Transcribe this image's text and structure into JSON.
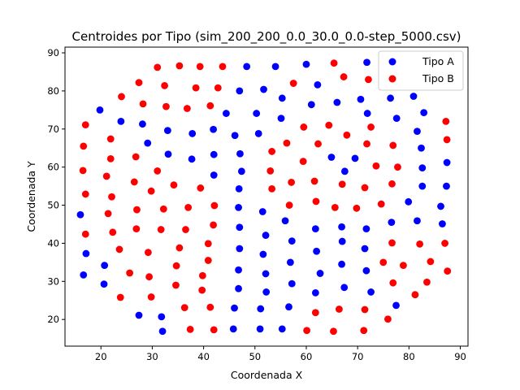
{
  "chart_data": {
    "type": "scatter",
    "title": "Centroides por Tipo (sim_200_200_0.0_30.0_0.0-step_5000.csv)",
    "xlabel": "Coordenada X",
    "ylabel": "Coordenada Y",
    "xlim": [
      13,
      91.5
    ],
    "ylim": [
      13,
      91.5
    ],
    "xticks": [
      20,
      30,
      40,
      50,
      60,
      70,
      80,
      90
    ],
    "yticks": [
      20,
      30,
      40,
      50,
      60,
      70,
      80,
      90
    ],
    "grid": false,
    "legend": "top-right",
    "series": [
      {
        "name": "Tipo A",
        "color": "#0000ff",
        "points": [
          [
            71.8,
            87.5
          ],
          [
            48.4,
            86.4
          ],
          [
            54.0,
            86.4
          ],
          [
            60.0,
            87.0
          ],
          [
            47.0,
            80.0
          ],
          [
            51.7,
            80.4
          ],
          [
            62.2,
            81.6
          ],
          [
            19.8,
            75.0
          ],
          [
            55.3,
            78.1
          ],
          [
            61.0,
            76.4
          ],
          [
            66.0,
            77.0
          ],
          [
            70.6,
            77.8
          ],
          [
            76.4,
            78.1
          ],
          [
            80.9,
            78.6
          ],
          [
            23.9,
            72.0
          ],
          [
            28.1,
            71.3
          ],
          [
            44.4,
            74.1
          ],
          [
            50.3,
            74.1
          ],
          [
            55.1,
            72.8
          ],
          [
            71.9,
            74.1
          ],
          [
            77.6,
            72.8
          ],
          [
            82.9,
            74.3
          ],
          [
            33.0,
            69.6
          ],
          [
            37.8,
            68.8
          ],
          [
            41.9,
            69.9
          ],
          [
            46.1,
            68.3
          ],
          [
            50.7,
            68.8
          ],
          [
            81.6,
            69.4
          ],
          [
            29.1,
            66.3
          ],
          [
            82.4,
            65.0
          ],
          [
            33.1,
            63.4
          ],
          [
            37.7,
            62.1
          ],
          [
            42.0,
            63.3
          ],
          [
            47.1,
            63.5
          ],
          [
            64.9,
            62.6
          ],
          [
            69.5,
            62.3
          ],
          [
            42.0,
            57.9
          ],
          [
            47.4,
            58.9
          ],
          [
            67.5,
            58.9
          ],
          [
            82.6,
            59.8
          ],
          [
            87.4,
            61.2
          ],
          [
            46.9,
            54.3
          ],
          [
            82.6,
            55.0
          ],
          [
            87.3,
            55.0
          ],
          [
            46.8,
            49.4
          ],
          [
            51.5,
            48.3
          ],
          [
            79.9,
            50.9
          ],
          [
            86.2,
            49.7
          ],
          [
            16.0,
            47.5
          ],
          [
            55.9,
            45.9
          ],
          [
            66.9,
            44.3
          ],
          [
            71.7,
            43.8
          ],
          [
            76.6,
            45.5
          ],
          [
            81.6,
            45.9
          ],
          [
            86.5,
            45.1
          ],
          [
            47.0,
            44.2
          ],
          [
            52.1,
            42.1
          ],
          [
            57.2,
            40.6
          ],
          [
            61.8,
            43.8
          ],
          [
            67.0,
            40.5
          ],
          [
            47.0,
            38.6
          ],
          [
            51.6,
            37.1
          ],
          [
            17.1,
            37.3
          ],
          [
            62.0,
            37.9
          ],
          [
            71.4,
            38.6
          ],
          [
            20.7,
            34.2
          ],
          [
            46.8,
            33.0
          ],
          [
            56.9,
            35.0
          ],
          [
            66.9,
            34.5
          ],
          [
            71.7,
            32.8
          ],
          [
            52.1,
            32.0
          ],
          [
            57.2,
            29.4
          ],
          [
            62.7,
            32.1
          ],
          [
            16.6,
            31.7
          ],
          [
            20.6,
            29.3
          ],
          [
            46.8,
            28.1
          ],
          [
            52.2,
            27.2
          ],
          [
            61.8,
            27.0
          ],
          [
            67.4,
            28.4
          ],
          [
            72.6,
            27.2
          ],
          [
            27.4,
            21.1
          ],
          [
            31.8,
            20.7
          ],
          [
            46.0,
            23.0
          ],
          [
            51.1,
            22.8
          ],
          [
            56.6,
            23.3
          ],
          [
            77.5,
            23.7
          ],
          [
            32.0,
            16.9
          ],
          [
            45.8,
            17.5
          ],
          [
            51.0,
            17.5
          ],
          [
            55.3,
            17.5
          ]
        ]
      },
      {
        "name": "Tipo B",
        "color": "#ff0000",
        "points": [
          [
            31.0,
            86.2
          ],
          [
            35.3,
            86.6
          ],
          [
            39.3,
            86.4
          ],
          [
            43.7,
            86.4
          ],
          [
            65.4,
            87.3
          ],
          [
            67.3,
            83.7
          ],
          [
            72.1,
            83.0
          ],
          [
            76.7,
            83.2
          ],
          [
            27.4,
            82.2
          ],
          [
            32.4,
            81.4
          ],
          [
            38.5,
            80.8
          ],
          [
            42.8,
            80.8
          ],
          [
            57.5,
            82.0
          ],
          [
            24.0,
            78.5
          ],
          [
            28.2,
            76.6
          ],
          [
            32.7,
            75.9
          ],
          [
            36.8,
            75.4
          ],
          [
            41.3,
            76.1
          ],
          [
            17.0,
            71.1
          ],
          [
            59.5,
            70.5
          ],
          [
            64.4,
            71.0
          ],
          [
            72.6,
            70.5
          ],
          [
            87.2,
            72.0
          ],
          [
            21.9,
            67.4
          ],
          [
            56.2,
            66.3
          ],
          [
            62.3,
            66.1
          ],
          [
            67.9,
            68.4
          ],
          [
            71.8,
            66.1
          ],
          [
            76.9,
            65.7
          ],
          [
            87.4,
            67.2
          ],
          [
            16.6,
            65.5
          ],
          [
            21.9,
            62.2
          ],
          [
            26.8,
            62.7
          ],
          [
            53.3,
            64.1
          ],
          [
            59.4,
            61.5
          ],
          [
            73.6,
            60.3
          ],
          [
            77.8,
            60.0
          ],
          [
            16.5,
            59.1
          ],
          [
            21.1,
            57.6
          ],
          [
            26.5,
            56.1
          ],
          [
            31.0,
            59.0
          ],
          [
            53.0,
            59.0
          ],
          [
            57.1,
            56.0
          ],
          [
            61.6,
            56.3
          ],
          [
            67.0,
            55.5
          ],
          [
            76.7,
            55.6
          ],
          [
            29.8,
            53.7
          ],
          [
            34.2,
            55.3
          ],
          [
            39.4,
            54.5
          ],
          [
            53.3,
            54.3
          ],
          [
            71.4,
            54.6
          ],
          [
            17.0,
            52.9
          ],
          [
            22.1,
            52.2
          ],
          [
            27.0,
            48.8
          ],
          [
            32.2,
            49.0
          ],
          [
            37.0,
            49.4
          ],
          [
            42.1,
            49.9
          ],
          [
            56.7,
            50.0
          ],
          [
            61.9,
            51.0
          ],
          [
            65.6,
            49.4
          ],
          [
            69.8,
            49.2
          ],
          [
            74.6,
            50.3
          ],
          [
            21.4,
            47.8
          ],
          [
            26.9,
            43.8
          ],
          [
            31.7,
            43.6
          ],
          [
            36.5,
            43.6
          ],
          [
            41.9,
            44.8
          ],
          [
            17.0,
            42.4
          ],
          [
            22.3,
            42.9
          ],
          [
            23.6,
            38.4
          ],
          [
            29.2,
            37.6
          ],
          [
            35.3,
            38.8
          ],
          [
            40.9,
            39.9
          ],
          [
            76.7,
            40.1
          ],
          [
            82.1,
            39.8
          ],
          [
            87.0,
            40.0
          ],
          [
            34.7,
            34.1
          ],
          [
            40.9,
            35.5
          ],
          [
            75.0,
            35.0
          ],
          [
            78.9,
            34.2
          ],
          [
            84.2,
            35.2
          ],
          [
            25.6,
            32.2
          ],
          [
            29.4,
            31.2
          ],
          [
            39.8,
            31.5
          ],
          [
            87.5,
            32.7
          ],
          [
            34.6,
            29.0
          ],
          [
            39.7,
            27.7
          ],
          [
            76.9,
            29.6
          ],
          [
            83.5,
            29.8
          ],
          [
            23.8,
            25.8
          ],
          [
            29.8,
            25.9
          ],
          [
            81.2,
            26.5
          ],
          [
            36.3,
            23.1
          ],
          [
            41.3,
            23.2
          ],
          [
            61.8,
            21.8
          ],
          [
            66.4,
            22.7
          ],
          [
            71.4,
            22.6
          ],
          [
            75.9,
            20.1
          ],
          [
            37.4,
            17.4
          ],
          [
            42.0,
            17.3
          ],
          [
            60.1,
            17.1
          ],
          [
            65.3,
            16.9
          ],
          [
            71.2,
            17.1
          ]
        ]
      }
    ]
  }
}
